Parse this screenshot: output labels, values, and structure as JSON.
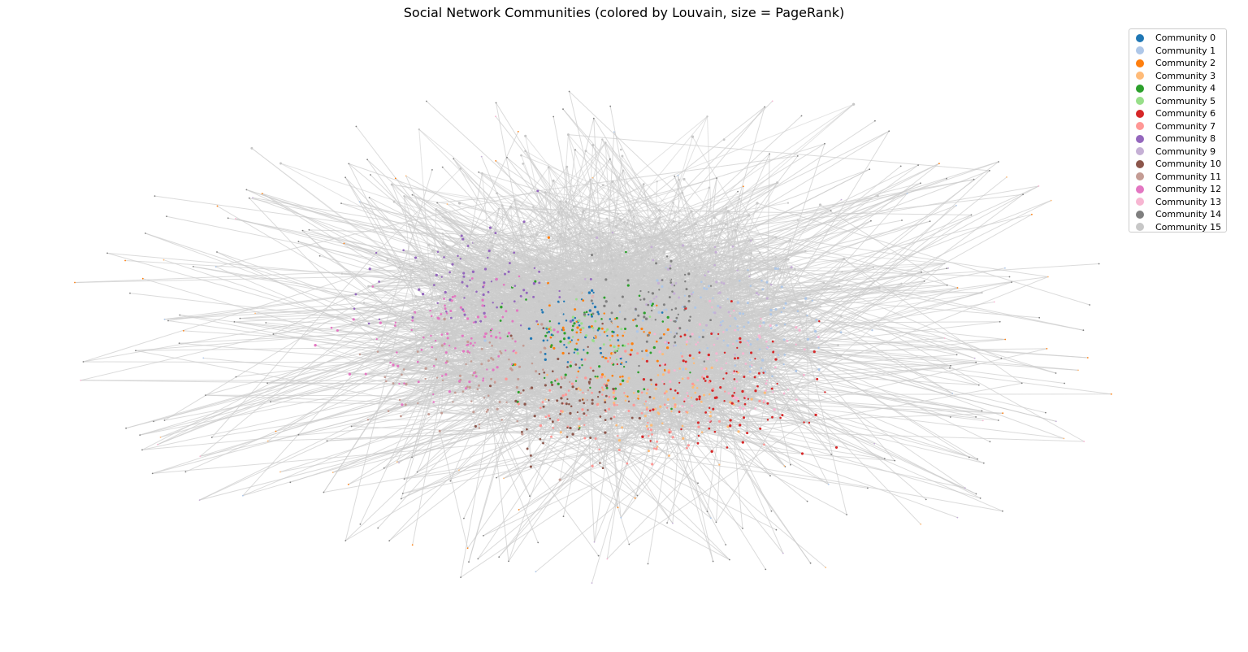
{
  "title": "Social Network Communities (colored by Louvain, size = PageRank)",
  "legend_items": [
    {
      "label": "Community 0",
      "color": "#1f77b4"
    },
    {
      "label": "Community 1",
      "color": "#aec7e8"
    },
    {
      "label": "Community 2",
      "color": "#ff7f0e"
    },
    {
      "label": "Community 3",
      "color": "#ffbb78"
    },
    {
      "label": "Community 4",
      "color": "#2ca02c"
    },
    {
      "label": "Community 5",
      "color": "#98df8a"
    },
    {
      "label": "Community 6",
      "color": "#d62728"
    },
    {
      "label": "Community 7",
      "color": "#ff9896"
    },
    {
      "label": "Community 8",
      "color": "#9467bd"
    },
    {
      "label": "Community 9",
      "color": "#c5b0d5"
    },
    {
      "label": "Community 10",
      "color": "#8c564b"
    },
    {
      "label": "Community 11",
      "color": "#c49c94"
    },
    {
      "label": "Community 12",
      "color": "#e377c2"
    },
    {
      "label": "Community 13",
      "color": "#f7b6d2"
    },
    {
      "label": "Community 14",
      "color": "#7f7f7f"
    },
    {
      "label": "Community 15",
      "color": "#c7c7c7"
    }
  ],
  "edge_color": "#cccccc",
  "legend_placement": "top-right"
}
